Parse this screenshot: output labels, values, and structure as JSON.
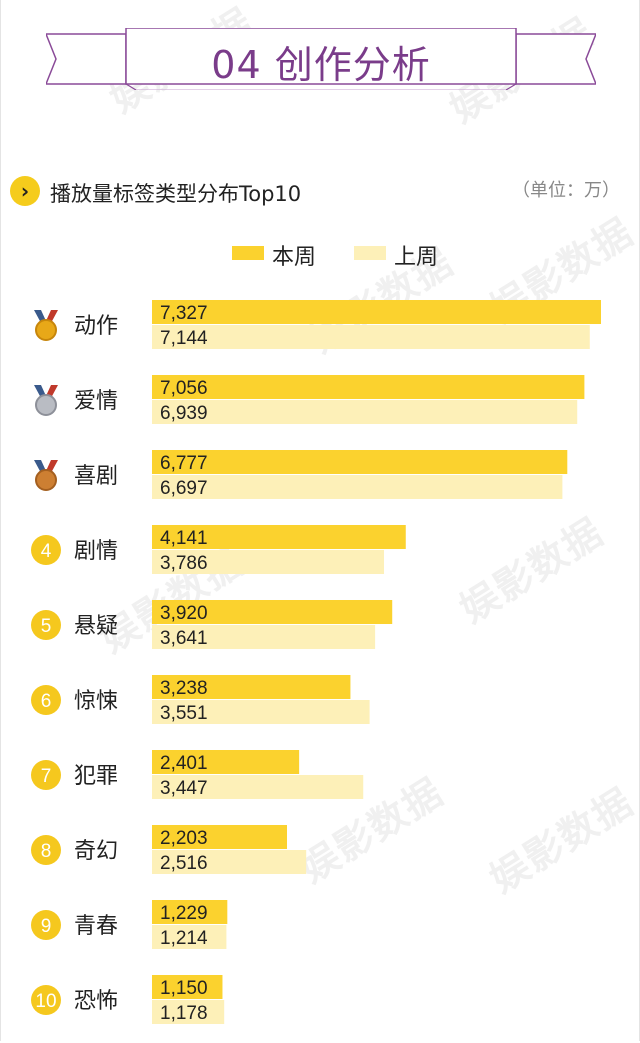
{
  "header": {
    "title": "04 创作分析"
  },
  "section": {
    "icon": "chevron-right-icon",
    "title": "播放量标签类型分布Top10",
    "unit": "（单位：万）"
  },
  "watermark": {
    "text": "娱影数据"
  },
  "legend": {
    "current": "本周",
    "previous": "上周"
  },
  "colors": {
    "current": "#fbd22e",
    "previous": "#fdf0b8",
    "accent": "#7a3c8a",
    "badge": "#f5c81e"
  },
  "chart_data": {
    "type": "bar",
    "orientation": "horizontal",
    "categories": [
      "动作",
      "爱情",
      "喜剧",
      "剧情",
      "悬疑",
      "惊悚",
      "犯罪",
      "奇幻",
      "青春",
      "恐怖"
    ],
    "ranks": [
      "1",
      "2",
      "3",
      "4",
      "5",
      "6",
      "7",
      "8",
      "9",
      "10"
    ],
    "rank_icons": [
      "gold-medal-icon",
      "silver-medal-icon",
      "bronze-medal-icon"
    ],
    "series": [
      {
        "name": "本周",
        "values": [
          7327,
          7056,
          6777,
          4141,
          3920,
          3238,
          2401,
          2203,
          1229,
          1150
        ],
        "labels": [
          "7,327",
          "7,056",
          "6,777",
          "4,141",
          "3,920",
          "3,238",
          "2,401",
          "2,203",
          "1,229",
          "1,150"
        ]
      },
      {
        "name": "上周",
        "values": [
          7144,
          6939,
          6697,
          3786,
          3641,
          3551,
          3447,
          2516,
          1214,
          1178
        ],
        "labels": [
          "7,144",
          "6,939",
          "6,697",
          "3,786",
          "3,641",
          "3,551",
          "3,447",
          "2,516",
          "1,214",
          "1,178"
        ]
      }
    ],
    "xlim": [
      0,
      7327
    ],
    "grid": false,
    "legend_position": "top"
  }
}
